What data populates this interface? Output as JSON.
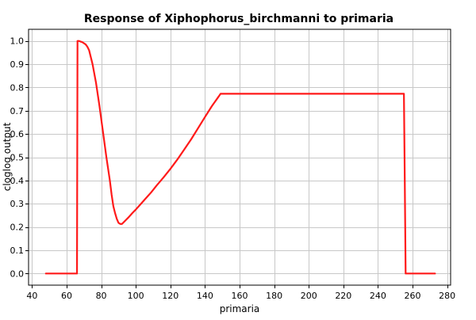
{
  "chart_data": {
    "type": "line",
    "title": "Response of Xiphophorus_birchmanni to primaria",
    "xlabel": "primaria",
    "ylabel": "cloglog output",
    "xlim": [
      38,
      282
    ],
    "ylim": [
      -0.05,
      1.05
    ],
    "xticks": [
      40,
      60,
      80,
      100,
      120,
      140,
      160,
      180,
      200,
      220,
      240,
      260,
      280
    ],
    "yticks": [
      0.0,
      0.1,
      0.2,
      0.3,
      0.4,
      0.5,
      0.6,
      0.7,
      0.8,
      0.9,
      1.0
    ],
    "grid": true,
    "line_color": "#ff1a1a",
    "series": [
      {
        "x": [
          48,
          66,
          66.3,
          67,
          69,
          71,
          72,
          73,
          75,
          77,
          79,
          81,
          83,
          85,
          86,
          87,
          88,
          89,
          90,
          91,
          92,
          94,
          96,
          98,
          100,
          103,
          106,
          109,
          112,
          116,
          120,
          124,
          128,
          132,
          136,
          140,
          144,
          148,
          149,
          160,
          180,
          200,
          220,
          240,
          255,
          255.5,
          256,
          273
        ],
        "y": [
          0.0,
          0.0,
          1.0,
          1.0,
          0.995,
          0.985,
          0.975,
          0.96,
          0.9,
          0.82,
          0.72,
          0.61,
          0.5,
          0.4,
          0.34,
          0.29,
          0.26,
          0.235,
          0.218,
          0.213,
          0.213,
          0.228,
          0.243,
          0.26,
          0.275,
          0.3,
          0.325,
          0.35,
          0.378,
          0.413,
          0.45,
          0.49,
          0.533,
          0.577,
          0.625,
          0.673,
          0.72,
          0.762,
          0.773,
          0.773,
          0.773,
          0.773,
          0.773,
          0.773,
          0.773,
          0.4,
          0.0,
          0.0
        ]
      }
    ]
  }
}
